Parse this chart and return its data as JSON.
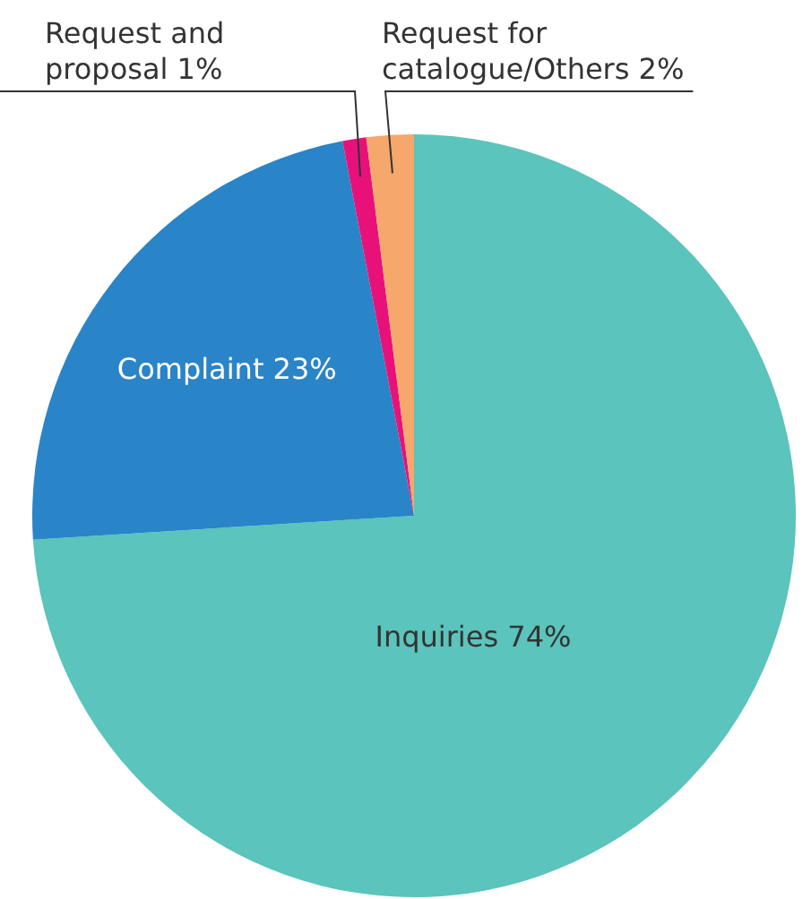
{
  "chart_data": {
    "type": "pie",
    "categories": [
      "Inquiries",
      "Complaint",
      "Request and proposal",
      "Request for catalogue/Others"
    ],
    "values": [
      74,
      23,
      1,
      2
    ],
    "value_labels": [
      "74%",
      "23%",
      "1%",
      "2%"
    ],
    "colors": [
      "#5bc4bc",
      "#2a84c8",
      "#e8117a",
      "#f5a76c"
    ]
  }
}
